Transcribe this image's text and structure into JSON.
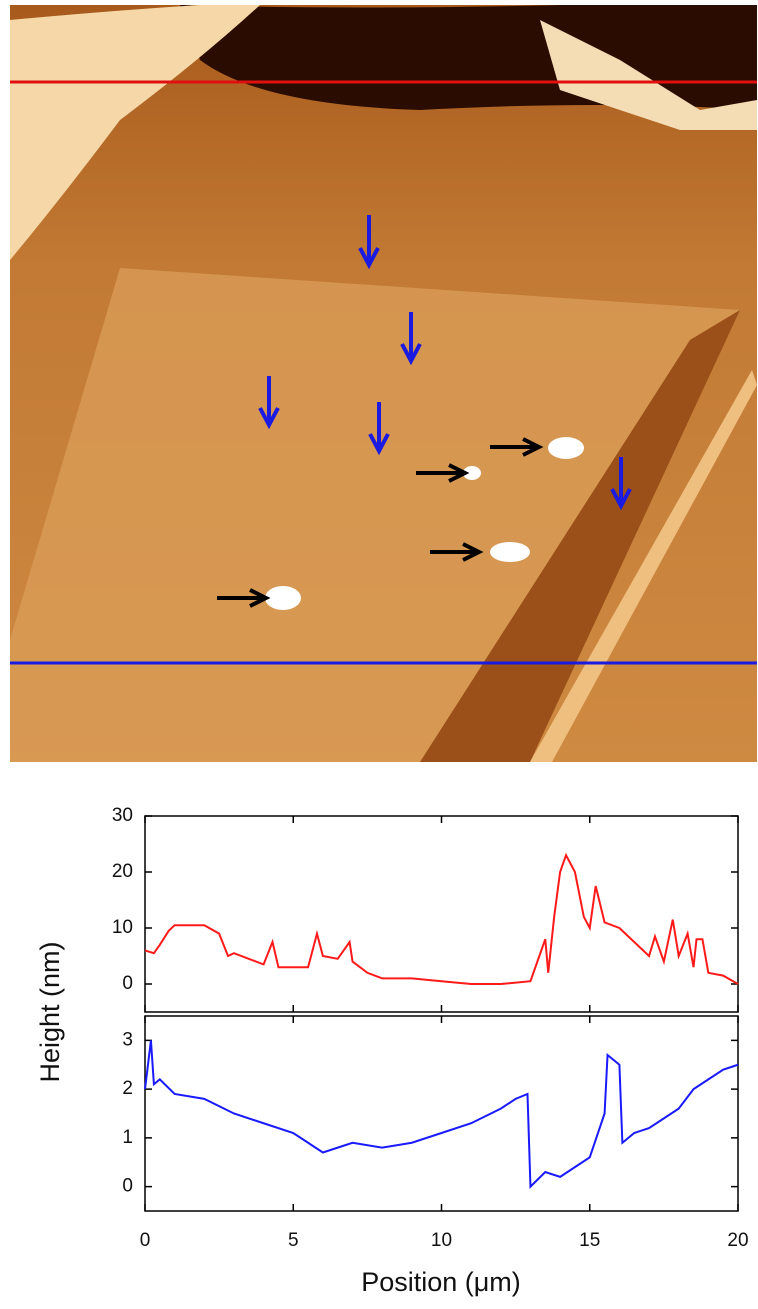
{
  "chart_data": [
    {
      "type": "line",
      "color": "#ff1a1a",
      "ylabel": "Height (nm)",
      "x": [
        0,
        0.3,
        0.5,
        0.8,
        1,
        1.5,
        2,
        2.5,
        2.8,
        3,
        3.5,
        4,
        4.3,
        4.5,
        5,
        5.5,
        5.8,
        6,
        6.5,
        6.9,
        7,
        7.5,
        8,
        9,
        10,
        11,
        12,
        13,
        13.3,
        13.5,
        13.6,
        13.8,
        14,
        14.2,
        14.5,
        14.8,
        15,
        15.2,
        15.5,
        16,
        16.5,
        17,
        17.2,
        17.5,
        17.8,
        18,
        18.3,
        18.5,
        18.6,
        18.8,
        19,
        19.5,
        20
      ],
      "values": [
        6,
        5.5,
        7,
        9.5,
        10.5,
        10.5,
        10.5,
        9,
        5,
        5.5,
        4.5,
        3.5,
        7.5,
        3,
        3,
        3,
        9,
        5,
        4.5,
        7.5,
        4,
        2,
        1,
        1,
        0.5,
        0,
        0,
        0.5,
        5,
        8,
        2,
        12,
        20,
        23,
        20,
        12,
        10,
        17.5,
        11,
        10,
        7.5,
        5,
        8.5,
        4,
        11.5,
        5,
        9,
        3,
        8,
        8,
        2,
        1.5,
        0
      ],
      "xlim": [
        0,
        20
      ],
      "xticks": [
        0,
        5,
        10,
        15,
        20
      ],
      "ylim": [
        -5,
        30
      ],
      "yticks": [
        0,
        10,
        20,
        30
      ]
    },
    {
      "type": "line",
      "color": "#1a1aff",
      "xlabel": "Position (μm)",
      "x": [
        0,
        0.2,
        0.3,
        0.5,
        1,
        2,
        3,
        4,
        5,
        5.5,
        6,
        6.5,
        7,
        8,
        9,
        10,
        11,
        12,
        12.5,
        12.9,
        13,
        13.5,
        14,
        14.5,
        15,
        15.5,
        15.6,
        16,
        16.1,
        16.5,
        17,
        17.5,
        18,
        18.5,
        19,
        19.5,
        20
      ],
      "values": [
        2,
        3,
        2.1,
        2.2,
        1.9,
        1.8,
        1.5,
        1.3,
        1.1,
        0.9,
        0.7,
        0.8,
        0.9,
        0.8,
        0.9,
        1.1,
        1.3,
        1.6,
        1.8,
        1.9,
        0,
        0.3,
        0.2,
        0.4,
        0.6,
        1.5,
        2.7,
        2.5,
        0.9,
        1.1,
        1.2,
        1.4,
        1.6,
        2,
        2.2,
        2.4,
        2.5
      ],
      "xlim": [
        0,
        20
      ],
      "xticks": [
        0,
        5,
        10,
        15,
        20
      ],
      "ylim": [
        -0.5,
        3.5
      ],
      "yticks": [
        0,
        1,
        2,
        3
      ]
    }
  ]
}
